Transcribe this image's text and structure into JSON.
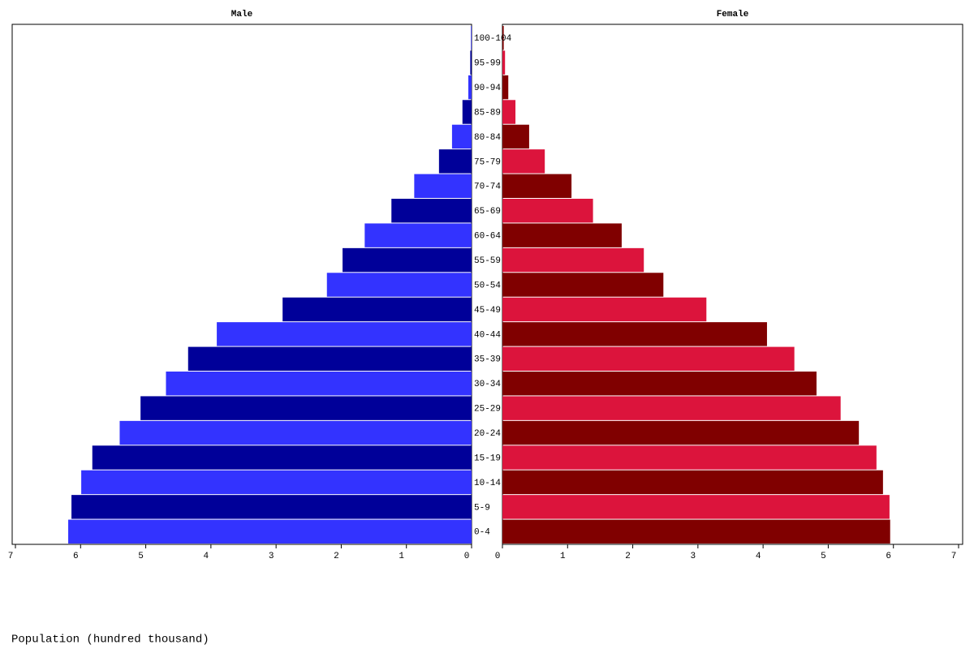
{
  "chart_data": {
    "type": "pyramid",
    "xlabel": "Population (hundred thousand)",
    "categories": [
      "0-4",
      "5-9",
      "10-14",
      "15-19",
      "20-24",
      "25-29",
      "30-34",
      "35-39",
      "40-44",
      "45-49",
      "50-54",
      "55-59",
      "60-64",
      "65-69",
      "70-74",
      "75-79",
      "80-84",
      "85-89",
      "90-94",
      "95-99",
      "100-104"
    ],
    "series": [
      {
        "name": "Male",
        "colors": [
          "#3333ff",
          "#000099"
        ],
        "values": [
          6.19,
          6.14,
          5.99,
          5.82,
          5.4,
          5.08,
          4.69,
          4.35,
          3.91,
          2.9,
          2.22,
          1.98,
          1.64,
          1.23,
          0.88,
          0.5,
          0.3,
          0.14,
          0.05,
          0.02,
          0.01
        ]
      },
      {
        "name": "Female",
        "colors": [
          "#800000",
          "#dc143c"
        ],
        "values": [
          5.95,
          5.94,
          5.84,
          5.74,
          5.47,
          5.19,
          4.82,
          4.48,
          4.06,
          3.13,
          2.47,
          2.17,
          1.83,
          1.39,
          1.06,
          0.65,
          0.41,
          0.2,
          0.09,
          0.04,
          0.02
        ]
      }
    ],
    "xlim": [
      0,
      7
    ],
    "xticks": [
      0,
      1,
      2,
      3,
      4,
      5,
      6,
      7
    ]
  }
}
